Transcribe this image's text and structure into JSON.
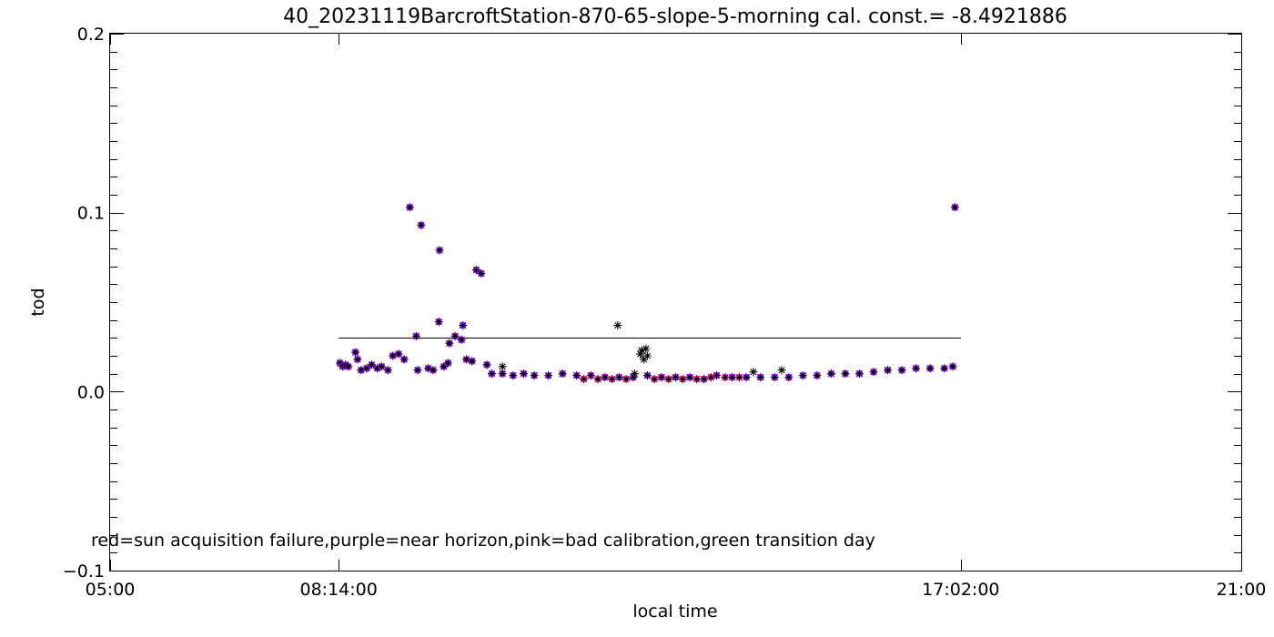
{
  "chart_data": {
    "type": "scatter",
    "title": "40_20231119BarcroftStation-870-65-slope-5-morning cal. const.= -8.4921886",
    "xlabel": "local time",
    "ylabel": "tod",
    "legend_note": "red=sun acquisition failure,purple=near horizon,pink=bad calibration,green transition day",
    "x_unit": "hours",
    "xlim": [
      5.0,
      21.0
    ],
    "ylim": [
      -0.1,
      0.2
    ],
    "x_ticks": [
      {
        "value": 5.0,
        "label": "05:00"
      },
      {
        "value": 8.2333,
        "label": "08:14:00"
      },
      {
        "value": 17.0333,
        "label": "17:02:00"
      },
      {
        "value": 21.0,
        "label": "21:00"
      }
    ],
    "y_ticks": [
      {
        "value": -0.1,
        "label": "−0.1"
      },
      {
        "value": 0.0,
        "label": "0.0"
      },
      {
        "value": 0.1,
        "label": "0.1"
      },
      {
        "value": 0.2,
        "label": "0.2"
      }
    ],
    "reference_line": {
      "x_start": 8.2333,
      "x_end": 17.0333,
      "y": 0.03
    },
    "colors": {
      "black": "#000000",
      "purple": "#9b00ff",
      "pink": "#ff1a8c"
    },
    "series": [
      {
        "name": "",
        "marker": "asterisk",
        "color": "#000000",
        "overlay_color": "#9b00ff",
        "points": [
          [
            8.25,
            0.016
          ],
          [
            8.29,
            0.014
          ],
          [
            8.33,
            0.015
          ],
          [
            8.37,
            0.014
          ],
          [
            8.47,
            0.022
          ],
          [
            8.5,
            0.018
          ],
          [
            8.55,
            0.012
          ],
          [
            8.63,
            0.013
          ],
          [
            8.7,
            0.015
          ],
          [
            8.78,
            0.013
          ],
          [
            8.84,
            0.014
          ],
          [
            8.93,
            0.012
          ],
          [
            9.0,
            0.02
          ],
          [
            9.08,
            0.021
          ],
          [
            9.16,
            0.018
          ],
          [
            9.24,
            0.103
          ],
          [
            9.33,
            0.031
          ],
          [
            9.35,
            0.012
          ],
          [
            9.4,
            0.093
          ],
          [
            9.5,
            0.013
          ],
          [
            9.57,
            0.012
          ],
          [
            9.65,
            0.039
          ],
          [
            9.66,
            0.079
          ],
          [
            9.72,
            0.014
          ],
          [
            9.78,
            0.016
          ],
          [
            9.8,
            0.027
          ],
          [
            9.88,
            0.031
          ],
          [
            9.97,
            0.029
          ],
          [
            9.99,
            0.037
          ],
          [
            10.04,
            0.018
          ],
          [
            10.12,
            0.017
          ],
          [
            10.18,
            0.068
          ],
          [
            10.25,
            0.066
          ],
          [
            10.33,
            0.015
          ],
          [
            10.4,
            0.01
          ],
          [
            10.55,
            0.01
          ],
          [
            10.7,
            0.009
          ],
          [
            10.85,
            0.01
          ],
          [
            11.0,
            0.009
          ],
          [
            11.2,
            0.009
          ],
          [
            11.4,
            0.01
          ],
          [
            11.6,
            0.009
          ],
          [
            11.8,
            0.009
          ],
          [
            12.0,
            0.008
          ],
          [
            12.2,
            0.008
          ],
          [
            12.4,
            0.008
          ],
          [
            12.6,
            0.009
          ],
          [
            12.8,
            0.008
          ],
          [
            13.0,
            0.008
          ],
          [
            13.2,
            0.008
          ],
          [
            13.4,
            0.007
          ],
          [
            13.58,
            0.009
          ],
          [
            13.8,
            0.008
          ],
          [
            14.0,
            0.008
          ],
          [
            14.2,
            0.008
          ],
          [
            14.4,
            0.008
          ],
          [
            14.6,
            0.008
          ],
          [
            14.8,
            0.009
          ],
          [
            15.0,
            0.009
          ],
          [
            15.2,
            0.01
          ],
          [
            15.4,
            0.01
          ],
          [
            15.6,
            0.01
          ],
          [
            15.8,
            0.011
          ],
          [
            16.0,
            0.012
          ],
          [
            16.2,
            0.012
          ],
          [
            16.4,
            0.013
          ],
          [
            16.6,
            0.013
          ],
          [
            16.8,
            0.013
          ],
          [
            16.92,
            0.014
          ],
          [
            16.95,
            0.103
          ]
        ]
      },
      {
        "name": "",
        "marker": "asterisk",
        "color": "#000000",
        "points": [
          [
            10.55,
            0.014
          ],
          [
            12.18,
            0.037
          ],
          [
            12.42,
            0.01
          ],
          [
            12.5,
            0.021
          ],
          [
            12.52,
            0.023
          ],
          [
            12.55,
            0.018
          ],
          [
            12.58,
            0.024
          ],
          [
            12.6,
            0.02
          ],
          [
            14.1,
            0.011
          ],
          [
            14.5,
            0.012
          ]
        ]
      },
      {
        "name": "",
        "marker": "asterisk",
        "color": "#000000",
        "overlay_color": "#ff1a8c",
        "points": [
          [
            11.7,
            0.007
          ],
          [
            11.9,
            0.007
          ],
          [
            12.1,
            0.007
          ],
          [
            12.3,
            0.007
          ],
          [
            12.7,
            0.007
          ],
          [
            12.9,
            0.007
          ],
          [
            13.1,
            0.007
          ],
          [
            13.3,
            0.007
          ],
          [
            13.5,
            0.008
          ],
          [
            13.7,
            0.008
          ],
          [
            13.9,
            0.008
          ]
        ]
      }
    ]
  }
}
